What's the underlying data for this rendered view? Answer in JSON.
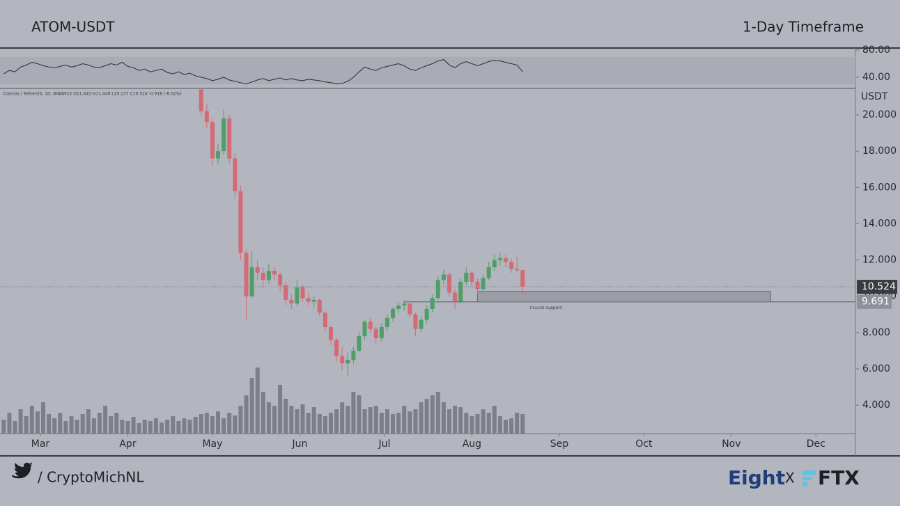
{
  "header": {
    "pair": "ATOM-USDT",
    "timeframe": "1-Day Timeframe"
  },
  "footer": {
    "handle": "/ CryptoMichNL",
    "brand": "Eight",
    "separator": "X",
    "partner": "FTX"
  },
  "chart_data": {
    "type": "candlestick",
    "legend": "Cosmos / TetherUS, 1D, BINANCE O11.443 H11.449 L10.137 C10.524 -0.918 (-8.02%)",
    "currency": "USDT",
    "up_color": "#4f9e68",
    "down_color": "#d36b74",
    "xlim": [
      -14.32,
      289
    ],
    "xticks": [
      {
        "value": 0,
        "label": "Mar"
      },
      {
        "value": 31,
        "label": "Apr"
      },
      {
        "value": 61,
        "label": "May"
      },
      {
        "value": 92,
        "label": "Jun"
      },
      {
        "value": 122,
        "label": "Jul"
      },
      {
        "value": 153,
        "label": "Aug"
      },
      {
        "value": 184,
        "label": "Sep"
      },
      {
        "value": 214,
        "label": "Oct"
      },
      {
        "value": 245,
        "label": "Nov"
      },
      {
        "value": 275,
        "label": "Dec"
      }
    ],
    "ylim": [
      2.43,
      21.46
    ],
    "yticks": [
      {
        "value": 4,
        "label": "4.000"
      },
      {
        "value": 6,
        "label": "6.000"
      },
      {
        "value": 8,
        "label": "8.000"
      },
      {
        "value": 10,
        "label": "10.000"
      },
      {
        "value": 12,
        "label": "12.000"
      },
      {
        "value": 14,
        "label": "14.000"
      },
      {
        "value": 16,
        "label": "16.000"
      },
      {
        "value": 18,
        "label": "18.000"
      },
      {
        "value": 20,
        "label": "20.000"
      }
    ],
    "candle_x": [
      57,
      59,
      61,
      63,
      65,
      67,
      69,
      71,
      73,
      75,
      77,
      79,
      81,
      83,
      85,
      87,
      89,
      91,
      93,
      95,
      97,
      99,
      101,
      103,
      105,
      107,
      109,
      111,
      113,
      115,
      117,
      119,
      121,
      123,
      125,
      127,
      129,
      131,
      133,
      135,
      137,
      139,
      141,
      143,
      145,
      147,
      149,
      151,
      153,
      155,
      157,
      159,
      161,
      163,
      165,
      167,
      169,
      171
    ],
    "candles": [
      [
        21.4,
        21.5,
        19.9,
        20.2
      ],
      [
        20.2,
        20.6,
        19.3,
        19.6
      ],
      [
        19.6,
        19.8,
        17.2,
        17.6
      ],
      [
        17.6,
        18.4,
        17.3,
        18.0
      ],
      [
        18.0,
        20.3,
        17.8,
        19.8
      ],
      [
        19.8,
        20.0,
        17.3,
        17.6
      ],
      [
        17.6,
        17.9,
        15.4,
        15.8
      ],
      [
        15.8,
        16.1,
        12.0,
        12.4
      ],
      [
        12.4,
        12.6,
        8.7,
        10.0
      ],
      [
        10.0,
        12.5,
        9.9,
        11.6
      ],
      [
        11.6,
        12.0,
        10.9,
        11.3
      ],
      [
        11.3,
        11.6,
        10.5,
        10.9
      ],
      [
        10.9,
        11.8,
        10.7,
        11.4
      ],
      [
        11.4,
        11.6,
        10.9,
        11.2
      ],
      [
        11.2,
        11.3,
        10.3,
        10.6
      ],
      [
        10.6,
        10.8,
        9.5,
        9.8
      ],
      [
        9.8,
        10.1,
        9.3,
        9.6
      ],
      [
        9.6,
        10.9,
        9.5,
        10.5
      ],
      [
        10.5,
        10.6,
        9.7,
        9.9
      ],
      [
        9.9,
        10.2,
        9.5,
        9.7
      ],
      [
        9.7,
        10.0,
        9.4,
        9.8
      ],
      [
        9.8,
        9.9,
        8.9,
        9.1
      ],
      [
        9.1,
        9.2,
        8.0,
        8.3
      ],
      [
        8.3,
        8.4,
        7.3,
        7.6
      ],
      [
        7.6,
        7.7,
        6.4,
        6.7
      ],
      [
        6.7,
        7.2,
        5.9,
        6.3
      ],
      [
        6.3,
        6.9,
        5.6,
        6.5
      ],
      [
        6.5,
        7.2,
        6.3,
        7.0
      ],
      [
        7.0,
        8.0,
        6.9,
        7.8
      ],
      [
        7.8,
        8.7,
        7.6,
        8.6
      ],
      [
        8.6,
        8.8,
        8.0,
        8.2
      ],
      [
        8.2,
        8.3,
        7.4,
        7.7
      ],
      [
        7.7,
        8.5,
        7.5,
        8.3
      ],
      [
        8.3,
        9.0,
        8.1,
        8.8
      ],
      [
        8.8,
        9.4,
        8.6,
        9.3
      ],
      [
        9.3,
        9.7,
        9.1,
        9.5
      ],
      [
        9.5,
        9.8,
        9.2,
        9.6
      ],
      [
        9.6,
        9.7,
        8.8,
        9.0
      ],
      [
        9.0,
        9.1,
        7.8,
        8.2
      ],
      [
        8.2,
        8.9,
        8.0,
        8.7
      ],
      [
        8.7,
        9.5,
        8.5,
        9.3
      ],
      [
        9.3,
        10.1,
        9.1,
        9.9
      ],
      [
        9.9,
        11.1,
        9.8,
        10.9
      ],
      [
        10.9,
        11.5,
        10.6,
        11.2
      ],
      [
        11.2,
        11.3,
        10.0,
        10.2
      ],
      [
        10.2,
        10.4,
        9.3,
        9.7
      ],
      [
        9.7,
        11.0,
        9.6,
        10.8
      ],
      [
        10.8,
        11.6,
        10.6,
        11.3
      ],
      [
        11.3,
        11.4,
        10.5,
        10.8
      ],
      [
        10.8,
        11.0,
        10.2,
        10.4
      ],
      [
        10.4,
        11.2,
        10.3,
        11.0
      ],
      [
        11.0,
        11.9,
        10.9,
        11.6
      ],
      [
        11.6,
        12.3,
        11.4,
        12.0
      ],
      [
        12.0,
        12.4,
        11.7,
        12.1
      ],
      [
        12.1,
        12.3,
        11.6,
        11.9
      ],
      [
        11.9,
        12.1,
        11.3,
        11.5
      ],
      [
        11.5,
        12.2,
        11.3,
        11.44
      ],
      [
        11.443,
        11.449,
        10.137,
        10.524
      ]
    ],
    "x": [
      -13,
      -11,
      -9,
      -7,
      -5,
      -3,
      -1,
      1,
      3,
      5,
      7,
      9,
      11,
      13,
      15,
      17,
      19,
      21,
      23,
      25,
      27,
      29,
      31,
      33,
      35,
      37,
      39,
      41,
      43,
      45,
      47,
      49,
      51,
      53,
      55,
      57,
      59,
      61,
      63,
      65,
      67,
      69,
      71,
      73,
      75,
      77,
      79,
      81,
      83,
      85,
      87,
      89,
      91,
      93,
      95,
      97,
      99,
      101,
      103,
      105,
      107,
      109,
      111,
      113,
      115,
      117,
      119,
      121,
      123,
      125,
      127,
      129,
      131,
      133,
      135,
      137,
      139,
      141,
      143,
      145,
      147,
      149,
      151,
      153,
      155,
      157,
      159,
      161,
      163,
      165,
      167,
      169,
      171
    ],
    "volume": {
      "color": "#6f727a",
      "ylim": [
        0,
        130
      ],
      "values": [
        20,
        30,
        18,
        35,
        25,
        40,
        32,
        45,
        28,
        22,
        30,
        18,
        25,
        20,
        28,
        35,
        22,
        30,
        40,
        25,
        30,
        20,
        18,
        24,
        15,
        20,
        18,
        22,
        16,
        20,
        25,
        18,
        22,
        20,
        24,
        28,
        30,
        25,
        32,
        22,
        30,
        26,
        40,
        55,
        80,
        95,
        60,
        45,
        40,
        70,
        50,
        40,
        35,
        42,
        30,
        38,
        28,
        25,
        30,
        35,
        45,
        40,
        60,
        55,
        35,
        38,
        40,
        30,
        35,
        28,
        30,
        40,
        32,
        35,
        45,
        50,
        55,
        60,
        45,
        35,
        40,
        38,
        30,
        25,
        28,
        35,
        30,
        40,
        25,
        20,
        22,
        30,
        28
      ]
    },
    "rsi": {
      "color": "#2b2c31",
      "band": [
        30,
        70
      ],
      "ylim": [
        24.6,
        82
      ],
      "yticks": [
        {
          "value": 40,
          "label": "40.00"
        },
        {
          "value": 80,
          "label": "80.00"
        }
      ],
      "values": [
        45,
        50,
        48,
        55,
        58,
        62,
        60,
        57,
        55,
        54,
        56,
        58,
        55,
        57,
        60,
        58,
        55,
        54,
        57,
        60,
        58,
        62,
        56,
        54,
        50,
        52,
        48,
        50,
        52,
        47,
        45,
        48,
        44,
        46,
        42,
        40,
        38,
        35,
        37,
        40,
        36,
        34,
        32,
        30,
        33,
        36,
        38,
        35,
        37,
        39,
        36,
        38,
        36,
        35,
        37,
        36,
        35,
        33,
        32,
        30,
        31,
        34,
        40,
        48,
        55,
        52,
        50,
        54,
        56,
        58,
        60,
        57,
        52,
        50,
        54,
        57,
        60,
        64,
        66,
        58,
        54,
        60,
        63,
        60,
        57,
        60,
        63,
        65,
        64,
        62,
        60,
        58,
        48
      ]
    },
    "support": {
      "label": "Crucial support.",
      "x": [
        155,
        259
      ],
      "y": [
        9.691,
        10.27
      ],
      "line_start": 129
    }
  }
}
